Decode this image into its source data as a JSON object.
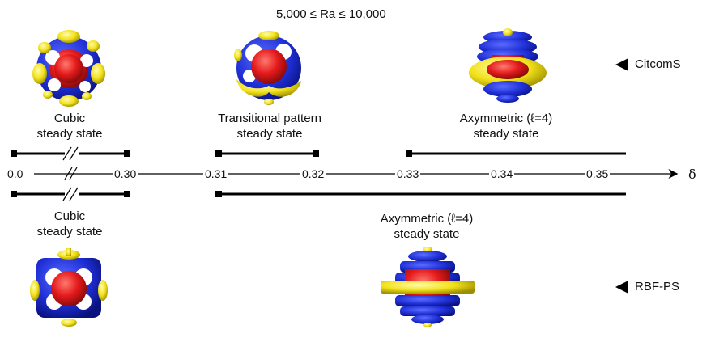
{
  "title": "5,000 ≤ Ra ≤ 10,000",
  "axis": {
    "symbol": "δ",
    "ticks": [
      "0.0",
      "0.30",
      "0.31",
      "0.32",
      "0.33",
      "0.34",
      "0.35"
    ]
  },
  "top_row": {
    "code_label": "CitcomS",
    "regimes": [
      {
        "line1": "Cubic",
        "line2": "steady state",
        "delta_from": 0.0,
        "delta_to": 0.3
      },
      {
        "line1": "Transitional pattern",
        "line2": "steady state",
        "delta_from": 0.31,
        "delta_to": 0.32
      },
      {
        "line1": "Axymmetric (ℓ=4)",
        "line2": "steady state",
        "delta_from": 0.33,
        "delta_to": 0.35
      }
    ]
  },
  "bottom_row": {
    "code_label": "RBF-PS",
    "regimes": [
      {
        "line1": "Cubic",
        "line2": "steady state",
        "delta_from": 0.0,
        "delta_to": 0.3
      },
      {
        "line1": "Axymmetric (ℓ=4)",
        "line2": "steady state",
        "delta_from": 0.31,
        "delta_to": 0.35
      }
    ]
  },
  "colors": {
    "hot": "#e41a1c",
    "cold": "#1f2fd6",
    "iso": "#f2e21a"
  },
  "icons": [
    "cubic-plume-sphere",
    "transitional-plume-sphere",
    "axisymmetric-plume-sphere",
    "arrow-left-icon"
  ]
}
